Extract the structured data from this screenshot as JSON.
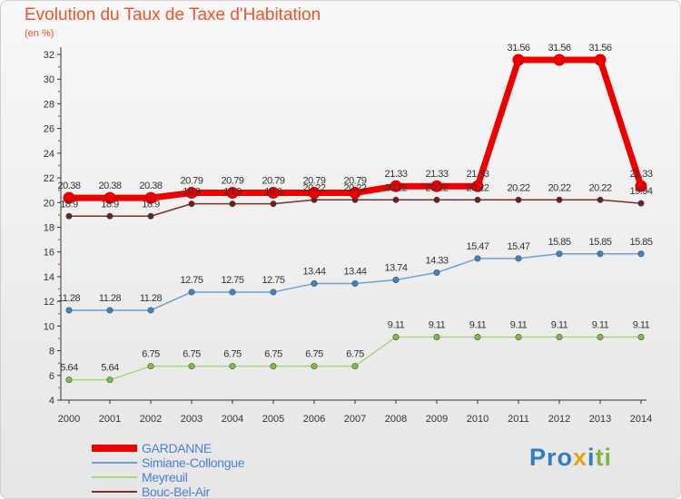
{
  "chart_data": {
    "type": "line",
    "title": "Evolution du Taux de Taxe d'Habitation",
    "ylabel": "(en %)",
    "xlabel": "",
    "x": [
      "2000",
      "2001",
      "2002",
      "2003",
      "2004",
      "2005",
      "2006",
      "2007",
      "2008",
      "2009",
      "2010",
      "2011",
      "2012",
      "2013",
      "2014"
    ],
    "yticks": [
      "4",
      "6",
      "8",
      "10",
      "12",
      "14",
      "16",
      "18",
      "20",
      "22",
      "24",
      "26",
      "28",
      "30",
      "32"
    ],
    "ylim": [
      4,
      32
    ],
    "grid": false,
    "legend_position": "bottom-left",
    "series": [
      {
        "name": "GARDANNE",
        "color": "#ee0000",
        "values": [
          20.38,
          20.38,
          20.38,
          20.79,
          20.79,
          20.79,
          20.79,
          20.79,
          21.33,
          21.33,
          21.33,
          31.56,
          31.56,
          31.56,
          21.33
        ],
        "labels": [
          "20.38",
          "20.38",
          "20.38",
          "20.79",
          "20.79",
          "20.79",
          "20.79",
          "20.79",
          "21.33",
          "21.33",
          "21.33",
          "31.56",
          "31.56",
          "31.56",
          "21.33"
        ]
      },
      {
        "name": "Simiane-Collongue",
        "color": "#6aa0d4",
        "values": [
          11.28,
          11.28,
          11.28,
          12.75,
          12.75,
          12.75,
          13.44,
          13.44,
          13.74,
          14.33,
          15.47,
          15.47,
          15.85,
          15.85,
          15.85
        ],
        "labels": [
          "11.28",
          "11.28",
          "11.28",
          "12.75",
          "12.75",
          "12.75",
          "13.44",
          "13.44",
          "13.74",
          "14.33",
          "15.47",
          "15.47",
          "15.85",
          "15.85",
          "15.85"
        ]
      },
      {
        "name": "Meyreuil",
        "color": "#a7d77a",
        "values": [
          5.64,
          5.64,
          6.75,
          6.75,
          6.75,
          6.75,
          6.75,
          6.75,
          9.11,
          9.11,
          9.11,
          9.11,
          9.11,
          9.11,
          9.11
        ],
        "labels": [
          "5.64",
          "5.64",
          "6.75",
          "6.75",
          "6.75",
          "6.75",
          "6.75",
          "6.75",
          "9.11",
          "9.11",
          "9.11",
          "9.11",
          "9.11",
          "9.11",
          "9.11"
        ]
      },
      {
        "name": "Bouc-Bel-Air",
        "color": "#7a2e2e",
        "values": [
          18.9,
          18.9,
          18.9,
          19.9,
          19.9,
          19.9,
          20.22,
          20.22,
          20.22,
          20.22,
          20.22,
          20.22,
          20.22,
          20.22,
          19.94
        ],
        "labels": [
          "18.9",
          "18.9",
          "18.9",
          "19.9",
          "19.9",
          "19.9",
          "20.22",
          "20.22",
          "20.22",
          "20.22",
          "20.22",
          "20.22",
          "20.22",
          "20.22",
          "19.94"
        ]
      }
    ]
  },
  "legend": {
    "items": [
      {
        "label": "GARDANNE",
        "color": "#ee0000"
      },
      {
        "label": "Simiane-Collongue",
        "color": "#6aa0d4"
      },
      {
        "label": "Meyreuil",
        "color": "#a7d77a"
      },
      {
        "label": "Bouc-Bel-Air",
        "color": "#7a2e2e"
      }
    ]
  },
  "brand": {
    "logo_text": "Proxiti"
  }
}
